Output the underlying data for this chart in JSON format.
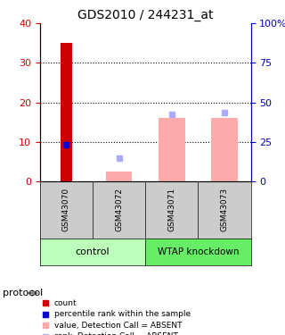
{
  "title": "GDS2010 / 244231_at",
  "samples": [
    "GSM43070",
    "GSM43072",
    "GSM43071",
    "GSM43073"
  ],
  "bar_count_values": [
    35,
    0,
    0,
    0
  ],
  "bar_count_color": "#cc0000",
  "percentile_values": [
    23.5,
    0,
    0,
    0
  ],
  "percentile_color": "#0000cc",
  "absent_value_bars": [
    0,
    2.5,
    16,
    16
  ],
  "absent_value_color": "#ffaaaa",
  "absent_rank_values": [
    0,
    6,
    17,
    17.5
  ],
  "absent_rank_color": "#aaaaff",
  "ylim_left": [
    0,
    40
  ],
  "ylim_right": [
    0,
    100
  ],
  "yticks_left": [
    0,
    10,
    20,
    30,
    40
  ],
  "yticks_right": [
    0,
    25,
    50,
    75,
    100
  ],
  "ytick_labels_right": [
    "0",
    "25",
    "50",
    "75",
    "100%"
  ],
  "left_axis_color": "#cc0000",
  "right_axis_color": "#0000cc",
  "sample_bg_color": "#cccccc",
  "control_color": "#bbffbb",
  "wtap_color": "#66ee66",
  "legend_items": [
    {
      "label": "count",
      "color": "#cc0000"
    },
    {
      "label": "percentile rank within the sample",
      "color": "#0000cc"
    },
    {
      "label": "value, Detection Call = ABSENT",
      "color": "#ffaaaa"
    },
    {
      "label": "rank, Detection Call = ABSENT",
      "color": "#aaaaff"
    }
  ]
}
